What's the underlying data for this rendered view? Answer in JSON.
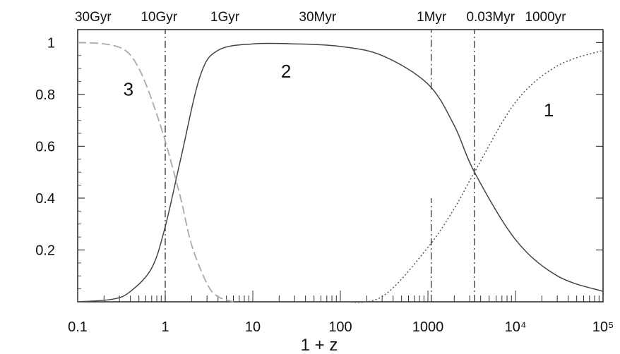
{
  "chart_data": {
    "type": "line",
    "xscale": "log",
    "xlabel": "1 + z",
    "xlim": [
      0.1,
      100000
    ],
    "ylim": [
      0,
      1.05
    ],
    "x_ticks": [
      {
        "value": 0.1,
        "label": "0.1"
      },
      {
        "value": 1,
        "label": "1"
      },
      {
        "value": 10,
        "label": "10"
      },
      {
        "value": 100,
        "label": "100"
      },
      {
        "value": 1000,
        "label": "1000"
      },
      {
        "value": 10000,
        "label": "10⁴"
      },
      {
        "value": 100000,
        "label": "10⁵"
      }
    ],
    "y_ticks": [
      {
        "value": 0.2,
        "label": "0.2"
      },
      {
        "value": 0.4,
        "label": "0.4"
      },
      {
        "value": 0.6,
        "label": "0.6"
      },
      {
        "value": 0.8,
        "label": "0.8"
      },
      {
        "value": 1.0,
        "label": "1"
      }
    ],
    "top_labels": [
      {
        "value": 0.15,
        "label": "30Gyr"
      },
      {
        "value": 0.85,
        "label": "10Gyr"
      },
      {
        "value": 4.8,
        "label": "1Gyr"
      },
      {
        "value": 55,
        "label": "30Myr"
      },
      {
        "value": 1100,
        "label": "1Myr"
      },
      {
        "value": 5200,
        "label": "0.03Myr"
      },
      {
        "value": 22000,
        "label": "1000yr"
      }
    ],
    "vertical_lines": [
      {
        "x": 1.0,
        "y_range": [
          0,
          1.05
        ]
      },
      {
        "x": 1090,
        "y_range": [
          0.82,
          1.05
        ]
      },
      {
        "x": 1090,
        "y_range": [
          0,
          0.4
        ]
      },
      {
        "x": 3400,
        "y_range": [
          0,
          1.05
        ]
      }
    ],
    "series": [
      {
        "label": "1",
        "style": "dotted",
        "color": "#555555",
        "points": [
          [
            100,
            0.0
          ],
          [
            300,
            0.02
          ],
          [
            1000,
            0.21
          ],
          [
            2000,
            0.36
          ],
          [
            3400,
            0.5
          ],
          [
            10000,
            0.77
          ],
          [
            30000,
            0.91
          ],
          [
            100000,
            0.97
          ]
        ]
      },
      {
        "label": "2",
        "style": "solid",
        "color": "#444444",
        "points": [
          [
            0.1,
            0.0
          ],
          [
            0.25,
            0.01
          ],
          [
            0.4,
            0.04
          ],
          [
            0.7,
            0.13
          ],
          [
            1.0,
            0.29
          ],
          [
            1.5,
            0.55
          ],
          [
            2.5,
            0.87
          ],
          [
            4.0,
            0.97
          ],
          [
            10,
            0.995
          ],
          [
            30,
            0.995
          ],
          [
            100,
            0.985
          ],
          [
            300,
            0.95
          ],
          [
            1000,
            0.84
          ],
          [
            2000,
            0.68
          ],
          [
            3400,
            0.5
          ],
          [
            10000,
            0.24
          ],
          [
            30000,
            0.1
          ],
          [
            100000,
            0.04
          ]
        ]
      },
      {
        "label": "3",
        "style": "dashed",
        "color": "#aaaaaa",
        "points": [
          [
            0.1,
            1.0
          ],
          [
            0.2,
            0.995
          ],
          [
            0.35,
            0.97
          ],
          [
            0.5,
            0.9
          ],
          [
            0.7,
            0.78
          ],
          [
            1.0,
            0.62
          ],
          [
            1.5,
            0.4
          ],
          [
            2.0,
            0.22
          ],
          [
            3.0,
            0.07
          ],
          [
            4.0,
            0.02
          ],
          [
            6,
            0.0
          ]
        ]
      }
    ],
    "curve_labels": [
      {
        "text": "3",
        "x": 0.38,
        "y": 0.82
      },
      {
        "text": "2",
        "x": 24,
        "y": 0.89
      },
      {
        "text": "1",
        "x": 24000,
        "y": 0.74
      }
    ]
  }
}
